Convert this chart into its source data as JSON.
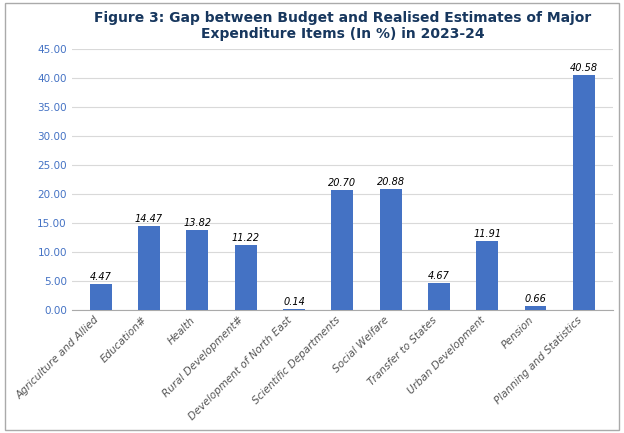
{
  "title": "Figure 3: Gap between Budget and Realised Estimates of Major\nExpenditure Items (In %) in 2023-24",
  "categories": [
    "Agriculture and Allied",
    "Education#",
    "Health",
    "Rural Development#",
    "Development of North East",
    "Scientific Departments",
    "Social Welfare",
    "Transfer to States",
    "Urban Development",
    "Pension",
    "Planning and Statistics"
  ],
  "values": [
    4.47,
    14.47,
    13.82,
    11.22,
    0.14,
    20.7,
    20.88,
    4.67,
    11.91,
    0.66,
    40.58
  ],
  "bar_color": "#4472C4",
  "ylim": [
    0,
    45
  ],
  "yticks": [
    0.0,
    5.0,
    10.0,
    15.0,
    20.0,
    25.0,
    30.0,
    35.0,
    40.0,
    45.0
  ],
  "title_fontsize": 10,
  "tick_fontsize": 7.5,
  "value_fontsize": 7.0,
  "title_color": "#17375E",
  "ytick_color": "#4472C4",
  "background_color": "#FFFFFF",
  "border_color": "#AAAAAA",
  "bar_width": 0.45,
  "grid_color": "#D9D9D9"
}
